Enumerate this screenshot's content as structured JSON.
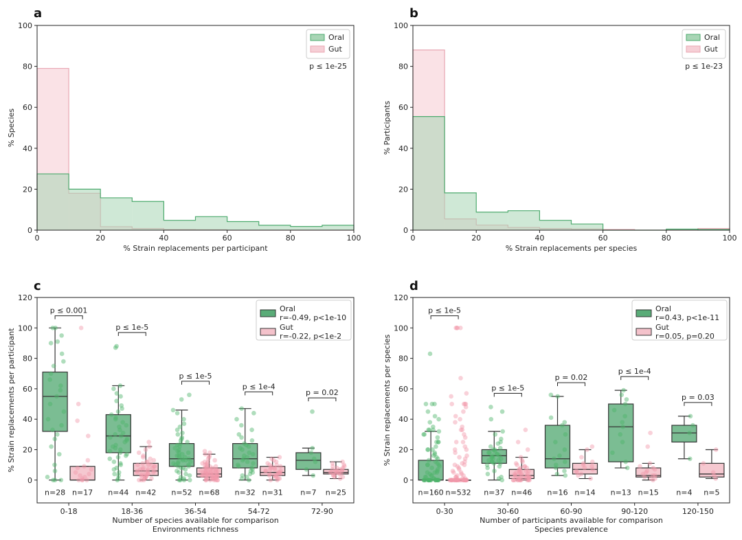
{
  "colors": {
    "oral_fill": "#a8d5b5",
    "oral_edge": "#4daa6e",
    "oral_box": "#5aac78",
    "oral_point": "#4db36a",
    "gut_fill": "#f6cfd6",
    "gut_edge": "#e8a7b3",
    "gut_box": "#f4c2cb",
    "gut_point": "#f29aab",
    "gut_label": "#f2a3b0",
    "oral_label": "#3aa55e"
  },
  "chart_data": [
    {
      "panel": "a",
      "type": "histogram",
      "xlabel": "% Strain replacements per participant",
      "ylabel": "% Species",
      "xlim": [
        0,
        100
      ],
      "ylim": [
        0,
        100
      ],
      "xticks": [
        "0",
        "20",
        "40",
        "60",
        "80",
        "100"
      ],
      "yticks": [
        "0",
        "20",
        "40",
        "60",
        "80",
        "100"
      ],
      "bin_edges": [
        0,
        10,
        20,
        30,
        40,
        50,
        60,
        70,
        80,
        90,
        100
      ],
      "series": [
        {
          "name": "Oral",
          "values": [
            27.5,
            20.0,
            15.8,
            14.0,
            4.8,
            6.6,
            4.2,
            2.4,
            1.8,
            2.4
          ]
        },
        {
          "name": "Gut",
          "values": [
            79.0,
            18.0,
            1.7,
            0.8,
            0.3,
            0.2,
            0,
            0,
            0,
            0
          ]
        }
      ],
      "legend": [
        "Oral",
        "Gut"
      ],
      "annotation": "p ≤ 1e-25"
    },
    {
      "panel": "b",
      "type": "histogram",
      "xlabel": "% Strain replacements per species",
      "ylabel": "% Participants",
      "xlim": [
        0,
        100
      ],
      "ylim": [
        0,
        100
      ],
      "xticks": [
        "0",
        "20",
        "40",
        "60",
        "80",
        "100"
      ],
      "yticks": [
        "0",
        "20",
        "40",
        "60",
        "80",
        "100"
      ],
      "bin_edges": [
        0,
        10,
        20,
        30,
        40,
        50,
        60,
        70,
        80,
        90,
        100
      ],
      "series": [
        {
          "name": "Oral",
          "values": [
            55.5,
            18.2,
            8.8,
            9.5,
            4.8,
            3.0,
            0,
            0,
            0.5,
            0.3
          ]
        },
        {
          "name": "Gut",
          "values": [
            88.0,
            5.5,
            2.5,
            1.3,
            0.8,
            0.6,
            0.3,
            0,
            0,
            0.8
          ]
        }
      ],
      "legend": [
        "Oral",
        "Gut"
      ],
      "annotation": "p ≤ 1e-23"
    },
    {
      "panel": "c",
      "type": "box",
      "xlabel": "Number of species available for comparison",
      "xlabel2": "Environments richness",
      "ylabel": "% Strain replacements per participant",
      "ylim": [
        -15,
        120
      ],
      "yticks": [
        "0",
        "20",
        "40",
        "60",
        "80",
        "100",
        "120"
      ],
      "categories": [
        "0-18",
        "18-36",
        "36-54",
        "54-72",
        "72-90"
      ],
      "legend": [
        {
          "name": "Oral",
          "stat": "r=-0.49, p<1e-10"
        },
        {
          "name": "Gut",
          "stat": "r=-0.22, p<1e-2"
        }
      ],
      "oral": [
        {
          "q1": 32,
          "median": 55,
          "q3": 71,
          "wlo": 0,
          "whi": 100,
          "n": "n=28",
          "points": [
            100,
            100,
            95,
            91,
            90,
            83,
            78,
            75,
            70,
            66,
            62,
            59,
            55,
            50,
            45,
            40,
            36,
            33,
            30,
            27,
            22,
            17,
            10,
            6,
            2,
            0,
            0,
            0
          ]
        },
        {
          "q1": 18,
          "median": 29,
          "q3": 43,
          "wlo": 0,
          "whi": 62,
          "n": "n=44",
          "points": [
            88,
            87,
            62,
            60,
            57,
            55,
            52,
            49,
            47,
            45,
            43,
            41,
            40,
            38,
            36,
            35,
            33,
            31,
            30,
            29,
            28,
            27,
            26,
            25,
            23,
            22,
            21,
            20,
            19,
            18,
            17,
            16,
            15,
            14,
            12,
            11,
            10,
            8,
            7,
            5,
            4,
            3,
            1,
            0
          ]
        },
        {
          "q1": 9,
          "median": 14,
          "q3": 24,
          "wlo": 0,
          "whi": 46,
          "n": "n=52",
          "points": [
            56,
            53,
            46,
            44,
            40,
            37,
            35,
            33,
            31,
            30,
            28,
            27,
            26,
            25,
            24,
            23,
            22,
            21,
            20,
            19,
            18,
            18,
            17,
            16,
            16,
            15,
            15,
            14,
            14,
            13,
            13,
            12,
            12,
            11,
            11,
            10,
            10,
            9,
            9,
            8,
            8,
            7,
            6,
            5,
            4,
            3,
            2,
            1,
            0,
            0,
            0,
            0
          ]
        },
        {
          "q1": 8,
          "median": 14,
          "q3": 24,
          "wlo": 0,
          "whi": 47,
          "n": "n=32",
          "points": [
            47,
            44,
            40,
            36,
            33,
            30,
            28,
            26,
            24,
            23,
            22,
            21,
            20,
            18,
            17,
            16,
            15,
            14,
            13,
            12,
            11,
            10,
            9,
            8,
            7,
            6,
            5,
            4,
            3,
            2,
            1,
            0
          ]
        },
        {
          "q1": 7,
          "median": 13,
          "q3": 18,
          "wlo": 3,
          "whi": 21,
          "n": "n=7",
          "points": [
            45,
            21,
            18,
            14,
            12,
            7,
            3
          ]
        }
      ],
      "gut": [
        {
          "q1": 0,
          "median": 0,
          "q3": 9,
          "wlo": 0,
          "whi": 9,
          "n": "n=17",
          "points": [
            100,
            50,
            39,
            29,
            13,
            9,
            8,
            7,
            5,
            4,
            3,
            2,
            1,
            0,
            0,
            0,
            0
          ]
        },
        {
          "q1": 3,
          "median": 6,
          "q3": 11,
          "wlo": 0,
          "whi": 22,
          "n": "n=42",
          "points": [
            25,
            22,
            20,
            18,
            16,
            15,
            14,
            13,
            12,
            12,
            11,
            11,
            10,
            10,
            9,
            9,
            8,
            8,
            7,
            7,
            7,
            6,
            6,
            6,
            5,
            5,
            5,
            4,
            4,
            4,
            3,
            3,
            3,
            2,
            2,
            2,
            1,
            1,
            1,
            0,
            0,
            0
          ]
        },
        {
          "q1": 2,
          "median": 4,
          "q3": 8,
          "wlo": 0,
          "whi": 17,
          "n": "n=68",
          "points": [
            19,
            18,
            17,
            16,
            15,
            14,
            13,
            12,
            12,
            11,
            11,
            10,
            10,
            9,
            9,
            9,
            8,
            8,
            8,
            8,
            7,
            7,
            7,
            7,
            6,
            6,
            6,
            6,
            6,
            5,
            5,
            5,
            5,
            5,
            5,
            4,
            4,
            4,
            4,
            4,
            4,
            4,
            3,
            3,
            3,
            3,
            3,
            3,
            2,
            2,
            2,
            2,
            2,
            2,
            1,
            1,
            1,
            1,
            1,
            1,
            1,
            0,
            0,
            0,
            0,
            0,
            0,
            0
          ]
        },
        {
          "q1": 3,
          "median": 5,
          "q3": 9,
          "wlo": 0,
          "whi": 15,
          "n": "n=31",
          "points": [
            15,
            14,
            13,
            12,
            11,
            10,
            10,
            9,
            9,
            8,
            8,
            7,
            7,
            6,
            6,
            6,
            5,
            5,
            5,
            4,
            4,
            4,
            3,
            3,
            3,
            2,
            2,
            1,
            1,
            0,
            0
          ]
        },
        {
          "q1": 4,
          "median": 5,
          "q3": 7,
          "wlo": 1,
          "whi": 12,
          "n": "n=25",
          "points": [
            12,
            11,
            10,
            9,
            9,
            8,
            8,
            7,
            7,
            7,
            6,
            6,
            6,
            5,
            5,
            5,
            5,
            4,
            4,
            4,
            3,
            3,
            2,
            2,
            1
          ]
        }
      ],
      "pvalues": [
        {
          "text": "p ≤ 0.001",
          "y": 108
        },
        {
          "text": "p ≤ 1e-5",
          "y": 97
        },
        {
          "text": "p ≤ 1e-5",
          "y": 65
        },
        {
          "text": "p ≤ 1e-4",
          "y": 58
        },
        {
          "text": "p = 0.02",
          "y": 54
        }
      ]
    },
    {
      "panel": "d",
      "type": "box",
      "xlabel": "Number of participants available for comparison",
      "xlabel2": "Species prevalence",
      "ylabel": "% Strain replacements per species",
      "ylim": [
        -15,
        120
      ],
      "yticks": [
        "0",
        "20",
        "40",
        "60",
        "80",
        "100",
        "120"
      ],
      "categories": [
        "0-30",
        "30-60",
        "60-90",
        "90-120",
        "120-150"
      ],
      "legend": [
        {
          "name": "Oral",
          "stat": "r=0.43, p<1e-11"
        },
        {
          "name": "Gut",
          "stat": "r=0.05, p=0.20"
        }
      ],
      "oral": [
        {
          "q1": 0,
          "median": 0,
          "q3": 13,
          "wlo": 0,
          "whi": 32,
          "n": "n=160",
          "points": [
            83,
            50,
            50,
            50,
            45,
            42,
            40,
            38,
            35,
            33,
            33,
            33,
            32,
            30,
            30,
            28,
            25,
            25,
            25,
            22,
            20,
            20,
            20,
            18,
            17,
            16,
            15,
            14,
            13,
            12,
            11,
            10,
            10,
            10,
            9,
            8,
            7,
            6,
            5,
            5,
            5,
            4,
            3,
            3,
            2,
            2,
            1,
            1,
            0,
            0,
            0,
            0,
            0,
            0,
            0,
            0,
            0,
            0,
            0,
            0,
            0,
            0,
            0,
            0,
            0,
            0,
            0,
            0,
            0,
            0
          ]
        },
        {
          "q1": 11,
          "median": 16,
          "q3": 20,
          "wlo": 0,
          "whi": 32,
          "n": "n=37",
          "points": [
            48,
            45,
            40,
            32,
            30,
            27,
            25,
            24,
            22,
            21,
            20,
            20,
            19,
            18,
            18,
            17,
            17,
            16,
            16,
            15,
            15,
            14,
            14,
            13,
            13,
            12,
            12,
            11,
            11,
            10,
            9,
            8,
            6,
            4,
            2,
            1,
            0
          ]
        },
        {
          "q1": 8,
          "median": 14,
          "q3": 36,
          "wlo": 3,
          "whi": 55,
          "n": "n=16",
          "points": [
            56,
            55,
            41,
            38,
            36,
            30,
            25,
            20,
            16,
            14,
            12,
            10,
            8,
            6,
            4,
            3
          ]
        },
        {
          "q1": 12,
          "median": 35,
          "q3": 50,
          "wlo": 8,
          "whi": 59,
          "n": "n=13",
          "points": [
            59,
            56,
            53,
            50,
            46,
            42,
            38,
            35,
            30,
            25,
            18,
            12,
            8
          ]
        },
        {
          "q1": 25,
          "median": 31,
          "q3": 36,
          "wlo": 14,
          "whi": 42,
          "n": "n=4",
          "points": [
            42,
            36,
            31,
            14
          ]
        }
      ],
      "gut": [
        {
          "q1": 0,
          "median": 0,
          "q3": 0,
          "wlo": 0,
          "whi": 0,
          "n": "n=532",
          "points": [
            100,
            100,
            100,
            100,
            67,
            57,
            55,
            50,
            50,
            50,
            50,
            48,
            45,
            42,
            40,
            38,
            35,
            33,
            33,
            30,
            28,
            25,
            25,
            22,
            20,
            20,
            18,
            16,
            15,
            14,
            12,
            11,
            10,
            10,
            9,
            8,
            7,
            6,
            5,
            5,
            4,
            3,
            3,
            2,
            2,
            1,
            1,
            1,
            0,
            0,
            0,
            0,
            0,
            0,
            0,
            0,
            0,
            0,
            0,
            0,
            0,
            0,
            0,
            0,
            0,
            0,
            0,
            0,
            0,
            0,
            0,
            0,
            0,
            0,
            0,
            0,
            0,
            0,
            0,
            0
          ]
        },
        {
          "q1": 1,
          "median": 3,
          "q3": 7,
          "wlo": 0,
          "whi": 15,
          "n": "n=46",
          "points": [
            33,
            25,
            20,
            15,
            13,
            12,
            11,
            10,
            9,
            9,
            8,
            8,
            7,
            7,
            6,
            6,
            6,
            5,
            5,
            5,
            4,
            4,
            4,
            3,
            3,
            3,
            3,
            2,
            2,
            2,
            2,
            1,
            1,
            1,
            1,
            0,
            0,
            0,
            0,
            0,
            0,
            0,
            0,
            0,
            0,
            0
          ]
        },
        {
          "q1": 4,
          "median": 7,
          "q3": 11,
          "wlo": 1,
          "whi": 20,
          "n": "n=14",
          "points": [
            22,
            20,
            15,
            12,
            11,
            10,
            9,
            8,
            7,
            6,
            5,
            4,
            3,
            1
          ]
        },
        {
          "q1": 2,
          "median": 3,
          "q3": 8,
          "wlo": 0,
          "whi": 11,
          "n": "n=15",
          "points": [
            31,
            22,
            11,
            9,
            8,
            7,
            6,
            5,
            4,
            3,
            3,
            2,
            1,
            1,
            0
          ]
        },
        {
          "q1": 2,
          "median": 4,
          "q3": 11,
          "wlo": 1,
          "whi": 20,
          "n": "n=5",
          "points": [
            20,
            11,
            5,
            3,
            1
          ]
        }
      ],
      "pvalues": [
        {
          "text": "p ≤ 1e-5",
          "y": 108
        },
        {
          "text": "p ≤ 1e-5",
          "y": 57
        },
        {
          "text": "p = 0.02",
          "y": 64
        },
        {
          "text": "p ≤ 1e-4",
          "y": 68
        },
        {
          "text": "p = 0.03",
          "y": 51
        }
      ]
    }
  ]
}
